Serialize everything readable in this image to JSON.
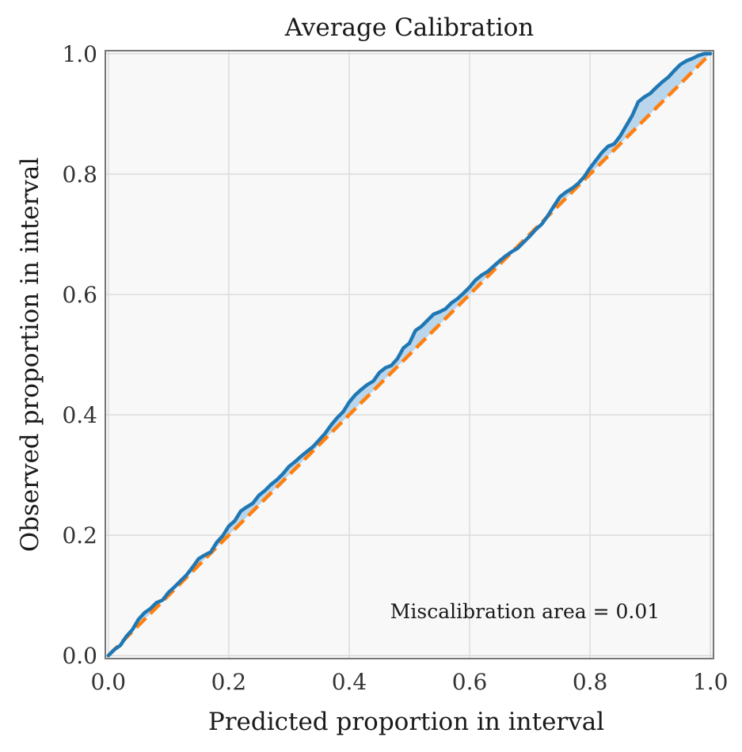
{
  "chart_data": {
    "type": "line",
    "title": "Average Calibration",
    "xlabel": "Predicted proportion in interval",
    "ylabel": "Observed proportion in interval",
    "xlim": [
      0.0,
      1.0
    ],
    "ylim": [
      0.0,
      1.0
    ],
    "grid": true,
    "xticks": [
      0.0,
      0.2,
      0.4,
      0.6,
      0.8,
      1.0
    ],
    "yticks": [
      0.0,
      0.2,
      0.4,
      0.6,
      0.8,
      1.0
    ],
    "xtick_labels": [
      "0.0",
      "0.2",
      "0.4",
      "0.6",
      "0.8",
      "1.0"
    ],
    "ytick_labels": [
      "0.0",
      "0.2",
      "0.4",
      "0.6",
      "0.8",
      "1.0"
    ],
    "annotation": "Miscalibration area = 0.01",
    "colors": {
      "observed": "#1f77b4",
      "ideal": "#ff7f0e",
      "fill": "#a6cbe8",
      "background": "#f8f8f8",
      "grid": "#dcdcdc",
      "spine": "#777777"
    },
    "series": [
      {
        "name": "Ideal",
        "style": "dashed",
        "x": [
          0.0,
          1.0
        ],
        "y": [
          0.0,
          1.0
        ]
      },
      {
        "name": "Observed",
        "style": "solid",
        "x": [
          0.0,
          0.01,
          0.02,
          0.03,
          0.04,
          0.05,
          0.06,
          0.07,
          0.08,
          0.09,
          0.1,
          0.11,
          0.12,
          0.13,
          0.14,
          0.15,
          0.16,
          0.17,
          0.18,
          0.19,
          0.2,
          0.21,
          0.22,
          0.23,
          0.24,
          0.25,
          0.26,
          0.27,
          0.28,
          0.29,
          0.3,
          0.31,
          0.32,
          0.33,
          0.34,
          0.35,
          0.36,
          0.37,
          0.38,
          0.39,
          0.4,
          0.41,
          0.42,
          0.43,
          0.44,
          0.45,
          0.46,
          0.47,
          0.48,
          0.49,
          0.5,
          0.51,
          0.52,
          0.53,
          0.54,
          0.55,
          0.56,
          0.57,
          0.58,
          0.59,
          0.6,
          0.61,
          0.62,
          0.63,
          0.64,
          0.65,
          0.66,
          0.67,
          0.68,
          0.69,
          0.7,
          0.71,
          0.72,
          0.73,
          0.74,
          0.75,
          0.76,
          0.77,
          0.78,
          0.79,
          0.8,
          0.81,
          0.82,
          0.83,
          0.84,
          0.85,
          0.86,
          0.87,
          0.88,
          0.89,
          0.9,
          0.91,
          0.92,
          0.93,
          0.94,
          0.95,
          0.96,
          0.97,
          0.98,
          0.99,
          1.0
        ],
        "y": [
          0.0,
          0.01,
          0.017,
          0.032,
          0.043,
          0.06,
          0.071,
          0.078,
          0.088,
          0.092,
          0.105,
          0.114,
          0.124,
          0.134,
          0.147,
          0.161,
          0.167,
          0.172,
          0.188,
          0.199,
          0.215,
          0.224,
          0.24,
          0.247,
          0.253,
          0.266,
          0.274,
          0.284,
          0.292,
          0.302,
          0.314,
          0.322,
          0.331,
          0.339,
          0.347,
          0.358,
          0.369,
          0.383,
          0.395,
          0.405,
          0.421,
          0.433,
          0.442,
          0.45,
          0.456,
          0.47,
          0.478,
          0.482,
          0.493,
          0.511,
          0.519,
          0.54,
          0.547,
          0.557,
          0.567,
          0.571,
          0.576,
          0.586,
          0.593,
          0.602,
          0.612,
          0.624,
          0.632,
          0.638,
          0.647,
          0.656,
          0.664,
          0.671,
          0.677,
          0.687,
          0.697,
          0.708,
          0.717,
          0.731,
          0.747,
          0.762,
          0.77,
          0.776,
          0.784,
          0.795,
          0.81,
          0.823,
          0.836,
          0.846,
          0.85,
          0.863,
          0.88,
          0.897,
          0.92,
          0.928,
          0.934,
          0.944,
          0.953,
          0.961,
          0.972,
          0.982,
          0.988,
          0.992,
          0.997,
          1.0,
          1.0
        ]
      }
    ]
  }
}
